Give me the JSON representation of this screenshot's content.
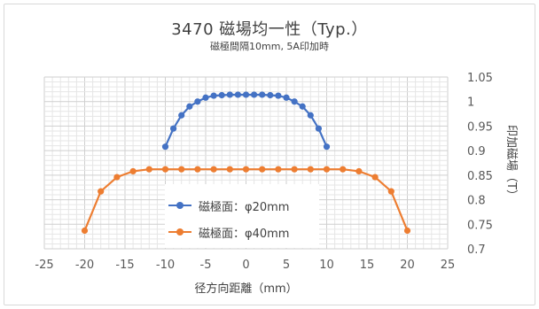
{
  "chart_data": {
    "type": "line",
    "title": "3470 磁場均一性（Typ.）",
    "subtitle": "磁極間隔10mm, 5A印加時",
    "xlabel": "径方向距離（mm）",
    "ylabel": "印加磁場（T）",
    "xlim": [
      -25,
      25
    ],
    "ylim": [
      0.7,
      1.05
    ],
    "xticks": [
      "-25",
      "-20",
      "-15",
      "-10",
      "-5",
      "0",
      "5",
      "10",
      "15",
      "20",
      "25"
    ],
    "yticks": [
      "0.7",
      "0.75",
      "0.8",
      "0.85",
      "0.9",
      "0.95",
      "1",
      "1.05"
    ],
    "grid": true,
    "legend_position": "bottom-center",
    "series": [
      {
        "name": "磁極面：φ20mm",
        "color": "#4472C4",
        "x": [
          -10,
          -9,
          -8,
          -7,
          -6,
          -5,
          -4,
          -3,
          -2,
          -1,
          0,
          1,
          2,
          3,
          4,
          5,
          6,
          7,
          8,
          9,
          10
        ],
        "y": [
          0.908,
          0.945,
          0.972,
          0.99,
          1.0,
          1.008,
          1.012,
          1.013,
          1.014,
          1.014,
          1.014,
          1.014,
          1.014,
          1.013,
          1.012,
          1.008,
          1.0,
          0.99,
          0.972,
          0.945,
          0.908
        ]
      },
      {
        "name": "磁極面：φ40mm",
        "color": "#ED7D31",
        "x": [
          -20,
          -18,
          -16,
          -14,
          -12,
          -10,
          -8,
          -6,
          -4,
          -2,
          0,
          2,
          4,
          6,
          8,
          10,
          12,
          14,
          16,
          18,
          20
        ],
        "y": [
          0.737,
          0.817,
          0.846,
          0.858,
          0.862,
          0.862,
          0.862,
          0.862,
          0.862,
          0.862,
          0.862,
          0.862,
          0.862,
          0.862,
          0.862,
          0.862,
          0.862,
          0.858,
          0.846,
          0.817,
          0.737
        ]
      }
    ]
  }
}
